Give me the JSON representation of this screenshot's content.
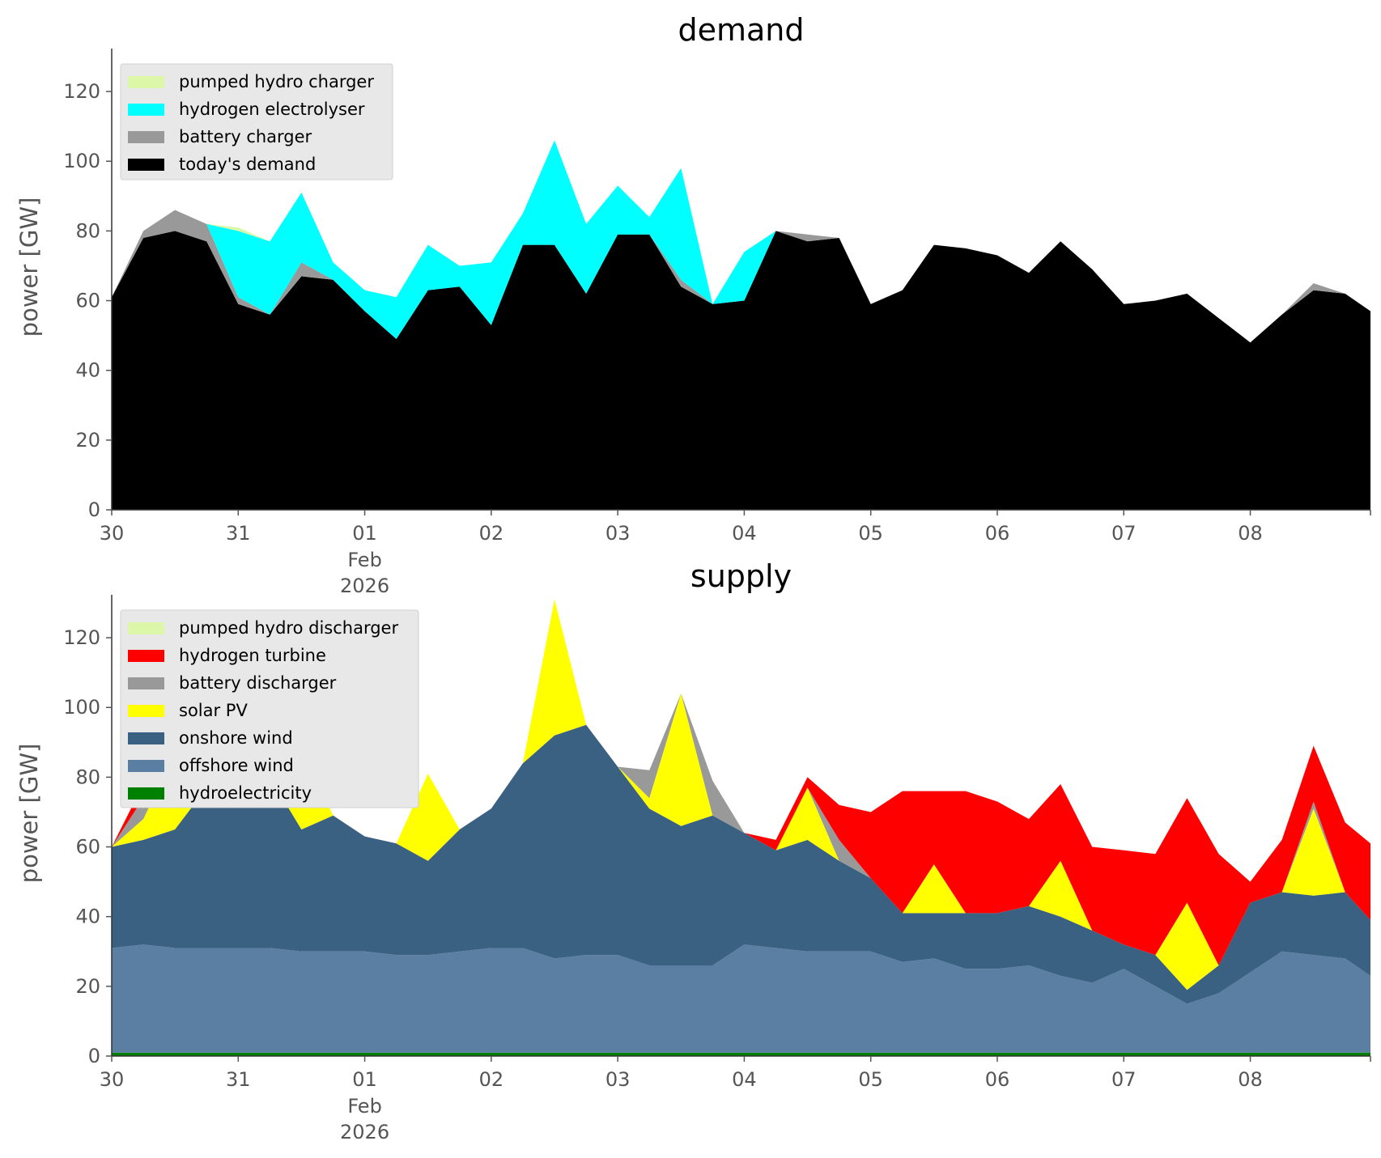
{
  "chart_data": [
    {
      "type": "area",
      "stacked": true,
      "title": "demand",
      "ylabel": "power [GW]",
      "xlabel": "",
      "ylim": [
        0,
        130
      ],
      "yticks": [
        0,
        20,
        40,
        60,
        80,
        100,
        120
      ],
      "x_unit": "days since 2026-01-30 00:00",
      "x_ticks": [
        {
          "x": 0,
          "label": "30",
          "sub": []
        },
        {
          "x": 1,
          "label": "31",
          "sub": []
        },
        {
          "x": 2,
          "label": "01",
          "sub": [
            "Feb",
            "2026"
          ]
        },
        {
          "x": 3,
          "label": "02",
          "sub": []
        },
        {
          "x": 4,
          "label": "03",
          "sub": []
        },
        {
          "x": 5,
          "label": "04",
          "sub": []
        },
        {
          "x": 6,
          "label": "05",
          "sub": []
        },
        {
          "x": 7,
          "label": "06",
          "sub": []
        },
        {
          "x": 8,
          "label": "07",
          "sub": []
        },
        {
          "x": 9,
          "label": "08",
          "sub": []
        }
      ],
      "xlim": [
        0,
        9.95
      ],
      "x": [
        0,
        0.25,
        0.5,
        0.75,
        1,
        1.25,
        1.5,
        1.75,
        2,
        2.25,
        2.5,
        2.75,
        3,
        3.25,
        3.5,
        3.75,
        4,
        4.25,
        4.5,
        4.75,
        5,
        5.25,
        5.5,
        5.75,
        6,
        6.25,
        6.5,
        6.75,
        7,
        7.25,
        7.5,
        7.75,
        8,
        8.25,
        8.5,
        8.75,
        9,
        9.25,
        9.5,
        9.75,
        9.95
      ],
      "grid": false,
      "legend_position": "top-left",
      "legend": [
        "pumped hydro charger",
        "hydrogen electrolyser",
        "battery charger",
        "today's demand"
      ],
      "series": [
        {
          "name": "today's demand",
          "color": "#000000",
          "values": [
            61,
            78,
            80,
            77,
            59,
            56,
            67,
            66,
            57,
            49,
            63,
            64,
            53,
            76,
            76,
            62,
            79,
            79,
            64,
            59,
            60,
            80,
            77,
            78,
            59,
            63,
            76,
            75,
            73,
            68,
            77,
            69,
            59,
            60,
            62,
            55,
            48,
            56,
            63,
            62,
            57
          ]
        },
        {
          "name": "battery charger",
          "color": "#999999",
          "values": [
            0,
            2,
            6,
            5,
            2,
            0,
            4,
            0,
            0,
            0,
            0,
            0,
            0,
            0,
            0,
            0,
            0,
            0,
            2,
            0,
            0,
            0,
            2,
            0,
            0,
            0,
            0,
            0,
            0,
            0,
            0,
            0,
            0,
            0,
            0,
            0,
            0,
            0,
            2,
            0,
            0
          ]
        },
        {
          "name": "hydrogen electrolyser",
          "color": "#00ffff",
          "values": [
            0,
            0,
            0,
            0,
            19,
            21,
            20,
            5,
            6,
            12,
            13,
            6,
            18,
            9,
            30,
            20,
            14,
            5,
            32,
            0,
            14,
            0,
            0,
            0,
            0,
            0,
            0,
            0,
            0,
            0,
            0,
            0,
            0,
            0,
            0,
            0,
            0,
            0,
            0,
            0,
            0
          ]
        },
        {
          "name": "pumped hydro charger",
          "color": "#ddf7a8",
          "values": [
            0,
            0,
            0,
            0,
            1,
            0,
            0,
            0,
            0,
            0,
            0,
            0,
            0,
            0,
            0,
            0,
            0,
            0,
            0,
            0,
            0,
            0,
            0,
            0,
            0,
            0,
            0,
            0,
            0,
            0,
            0,
            0,
            0,
            0,
            0,
            0,
            0,
            0,
            0,
            0,
            0
          ]
        }
      ]
    },
    {
      "type": "area",
      "stacked": true,
      "title": "supply",
      "ylabel": "power [GW]",
      "xlabel": "",
      "ylim": [
        0,
        130
      ],
      "yticks": [
        0,
        20,
        40,
        60,
        80,
        100,
        120
      ],
      "x_unit": "days since 2026-01-30 00:00",
      "x_ticks": [
        {
          "x": 0,
          "label": "30",
          "sub": []
        },
        {
          "x": 1,
          "label": "31",
          "sub": []
        },
        {
          "x": 2,
          "label": "01",
          "sub": [
            "Feb",
            "2026"
          ]
        },
        {
          "x": 3,
          "label": "02",
          "sub": []
        },
        {
          "x": 4,
          "label": "03",
          "sub": []
        },
        {
          "x": 5,
          "label": "04",
          "sub": []
        },
        {
          "x": 6,
          "label": "05",
          "sub": []
        },
        {
          "x": 7,
          "label": "06",
          "sub": []
        },
        {
          "x": 8,
          "label": "07",
          "sub": []
        },
        {
          "x": 9,
          "label": "08",
          "sub": []
        }
      ],
      "xlim": [
        0,
        9.95
      ],
      "x": [
        0,
        0.25,
        0.5,
        0.75,
        1,
        1.25,
        1.5,
        1.75,
        2,
        2.25,
        2.5,
        2.75,
        3,
        3.25,
        3.5,
        3.75,
        4,
        4.25,
        4.5,
        4.75,
        5,
        5.25,
        5.5,
        5.75,
        6,
        6.25,
        6.5,
        6.75,
        7,
        7.25,
        7.5,
        7.75,
        8,
        8.25,
        8.5,
        8.75,
        9,
        9.25,
        9.5,
        9.75,
        9.95
      ],
      "grid": false,
      "legend_position": "top-left",
      "legend": [
        "pumped hydro discharger",
        "hydrogen turbine",
        "battery discharger",
        "solar PV",
        "onshore wind",
        "offshore wind",
        "hydroelectricity"
      ],
      "series": [
        {
          "name": "hydroelectricity",
          "color": "#008000",
          "values": [
            1,
            1,
            1,
            1,
            1,
            1,
            1,
            1,
            1,
            1,
            1,
            1,
            1,
            1,
            1,
            1,
            1,
            1,
            1,
            1,
            1,
            1,
            1,
            1,
            1,
            1,
            1,
            1,
            1,
            1,
            1,
            1,
            1,
            1,
            1,
            1,
            1,
            1,
            1,
            1,
            1
          ]
        },
        {
          "name": "offshore wind",
          "color": "#5b7fa2",
          "values": [
            30,
            31,
            30,
            30,
            30,
            30,
            29,
            29,
            29,
            28,
            28,
            29,
            30,
            30,
            27,
            28,
            28,
            25,
            25,
            25,
            31,
            30,
            29,
            29,
            29,
            26,
            27,
            24,
            24,
            25,
            22,
            20,
            24,
            19,
            14,
            17,
            23,
            29,
            28,
            27,
            22
          ]
        },
        {
          "name": "onshore wind",
          "color": "#3b6182",
          "values": [
            29,
            30,
            34,
            46,
            52,
            49,
            35,
            39,
            33,
            32,
            27,
            35,
            40,
            53,
            64,
            66,
            54,
            45,
            40,
            43,
            32,
            28,
            32,
            26,
            21,
            14,
            13,
            16,
            16,
            17,
            17,
            15,
            7,
            9,
            4,
            8,
            20,
            17,
            17,
            19,
            16
          ]
        },
        {
          "name": "solar PV",
          "color": "#ffff00",
          "values": [
            0,
            6,
            22,
            0,
            0,
            0,
            24,
            0,
            0,
            0,
            25,
            0,
            0,
            0,
            39,
            0,
            0,
            3,
            38,
            0,
            0,
            0,
            15,
            0,
            0,
            0,
            14,
            0,
            0,
            0,
            16,
            0,
            0,
            0,
            25,
            0,
            0,
            0,
            25,
            0,
            0
          ]
        },
        {
          "name": "battery discharger",
          "color": "#999999",
          "values": [
            0,
            6,
            0,
            0,
            0,
            0,
            0,
            0,
            0,
            0,
            0,
            0,
            0,
            0,
            0,
            0,
            0,
            8,
            0,
            10,
            0,
            0,
            0,
            6,
            0,
            0,
            0,
            0,
            0,
            0,
            0,
            0,
            0,
            0,
            0,
            0,
            0,
            0,
            2,
            0,
            0
          ]
        },
        {
          "name": "hydrogen turbine",
          "color": "#ff0000",
          "values": [
            0,
            4,
            0,
            0,
            0,
            0,
            0,
            0,
            0,
            0,
            0,
            0,
            0,
            0,
            0,
            0,
            0,
            0,
            0,
            0,
            0,
            3,
            3,
            10,
            19,
            35,
            21,
            35,
            32,
            25,
            22,
            24,
            27,
            29,
            30,
            32,
            6,
            15,
            16,
            20,
            22
          ]
        },
        {
          "name": "pumped hydro discharger",
          "color": "#ddf7a8",
          "values": [
            0,
            0,
            0,
            0,
            0,
            0,
            0,
            0,
            0,
            0,
            0,
            0,
            0,
            0,
            0,
            0,
            0,
            0,
            0,
            0,
            0,
            0,
            0,
            0,
            0,
            0,
            0,
            0,
            0,
            0,
            0,
            0,
            0,
            0,
            0,
            0,
            0,
            0,
            0,
            0,
            0
          ]
        }
      ]
    }
  ]
}
